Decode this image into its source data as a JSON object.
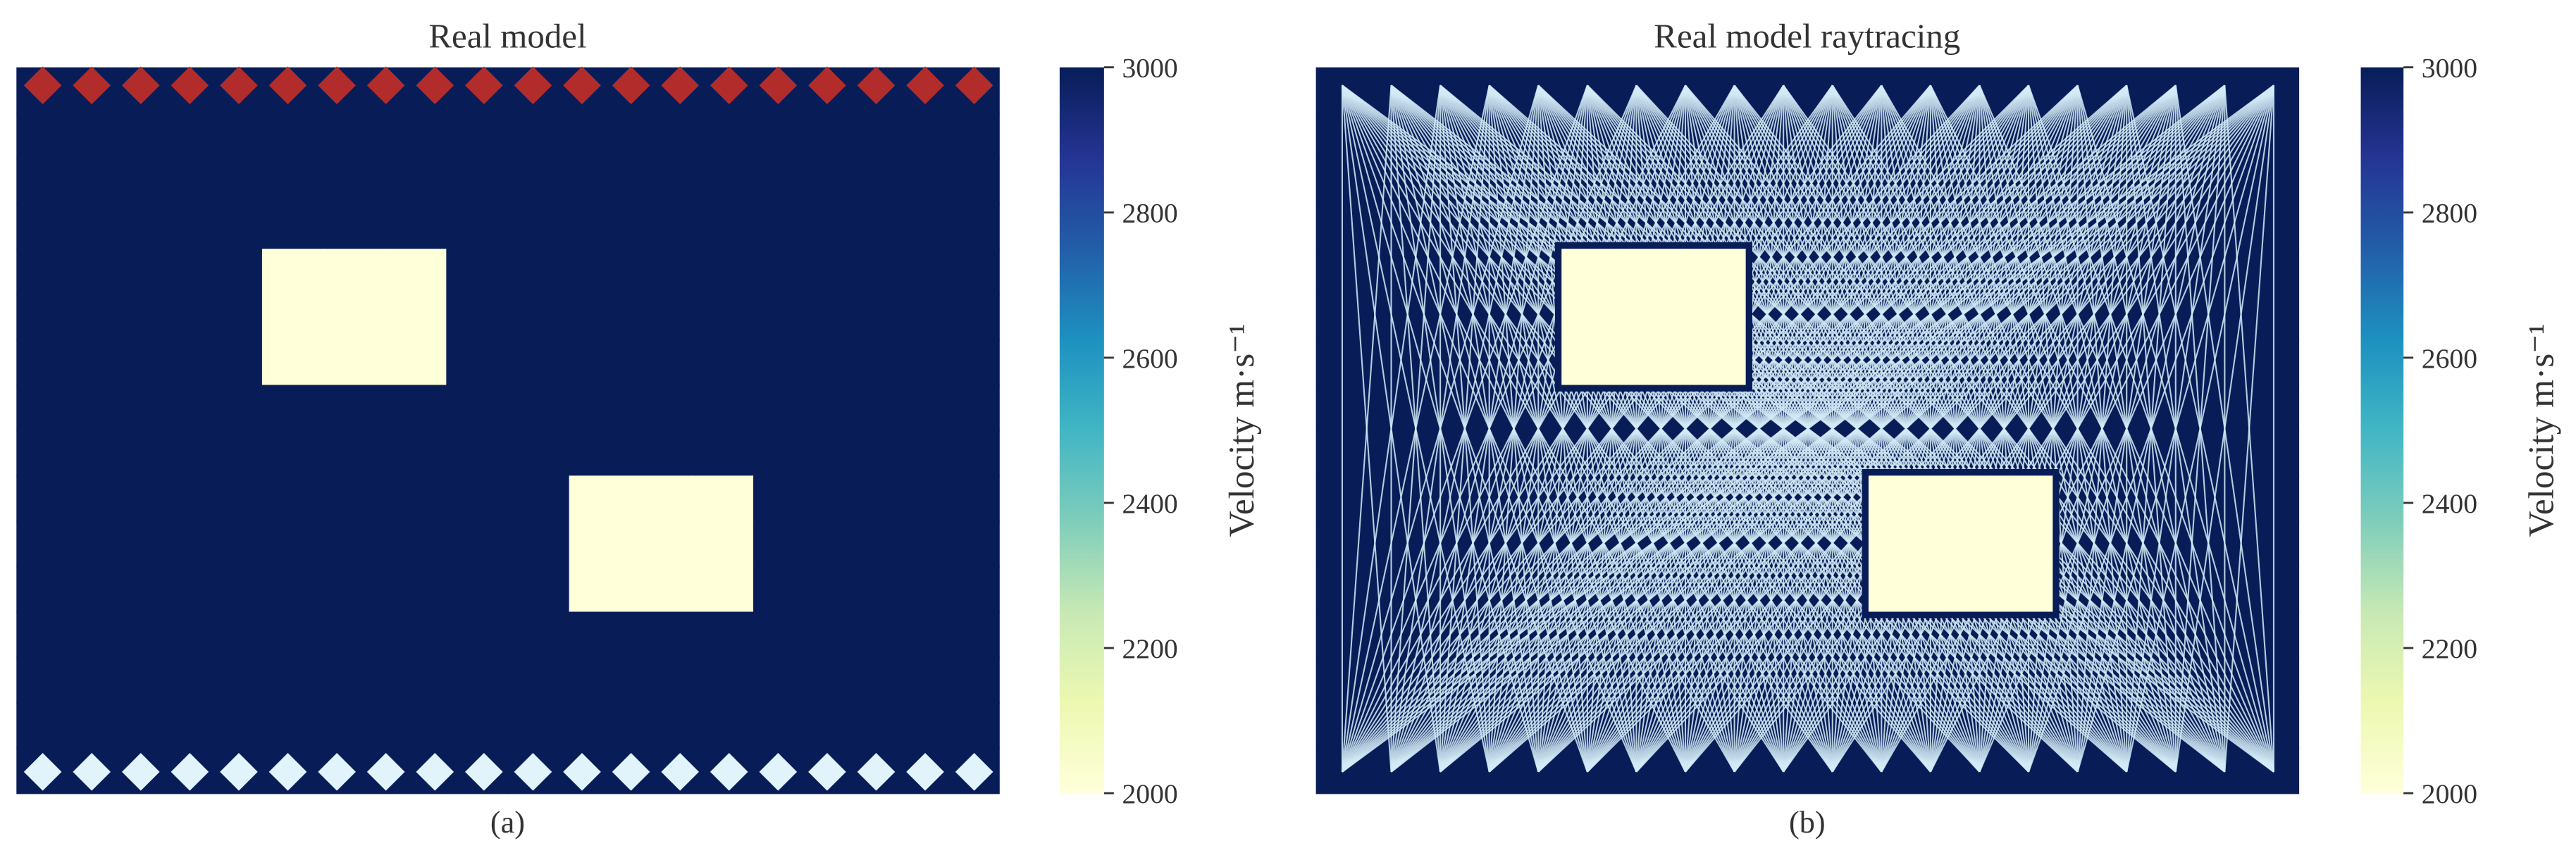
{
  "chart_data": [
    {
      "type": "heatmap",
      "title": "Real model",
      "caption": "(a)",
      "colorbar_label": "Velocity m·s⁻¹",
      "colormap": "YlGnBu",
      "clim": [
        2000,
        3000
      ],
      "cticks": [
        2000,
        2200,
        2400,
        2600,
        2800,
        3000
      ],
      "sources": true,
      "rays": false,
      "values": [
        [
          3000,
          3000,
          3000,
          3000,
          3000,
          3000,
          3000,
          3000,
          3000,
          3000,
          3000,
          3000,
          3000,
          3000,
          3000,
          3000
        ],
        [
          3000,
          3000,
          3000,
          3000,
          3000,
          3000,
          3000,
          3000,
          3000,
          3000,
          3000,
          3000,
          3000,
          3000,
          3000,
          3000
        ],
        [
          3000,
          3000,
          3000,
          3000,
          3000,
          3000,
          3000,
          3000,
          3000,
          3000,
          3000,
          3000,
          3000,
          3000,
          3000,
          3000
        ],
        [
          3000,
          3000,
          3000,
          3000,
          3000,
          3000,
          3000,
          3000,
          3000,
          3000,
          3000,
          3000,
          3000,
          3000,
          3000,
          3000
        ],
        [
          3000,
          3000,
          3000,
          3000,
          2000,
          2000,
          2000,
          3000,
          3000,
          3000,
          3000,
          3000,
          3000,
          3000,
          3000,
          3000
        ],
        [
          3000,
          3000,
          3000,
          3000,
          2000,
          2000,
          2000,
          3000,
          3000,
          3000,
          3000,
          3000,
          3000,
          3000,
          3000,
          3000
        ],
        [
          3000,
          3000,
          3000,
          3000,
          2000,
          2000,
          2000,
          3000,
          3000,
          3000,
          3000,
          3000,
          3000,
          3000,
          3000,
          3000
        ],
        [
          3000,
          3000,
          3000,
          3000,
          3000,
          3000,
          3000,
          3000,
          3000,
          3000,
          3000,
          3000,
          3000,
          3000,
          3000,
          3000
        ],
        [
          3000,
          3000,
          3000,
          3000,
          3000,
          3000,
          3000,
          3000,
          3000,
          3000,
          3000,
          3000,
          3000,
          3000,
          3000,
          3000
        ],
        [
          3000,
          3000,
          3000,
          3000,
          3000,
          3000,
          3000,
          3000,
          3000,
          2000,
          2000,
          2000,
          3000,
          3000,
          3000,
          3000
        ],
        [
          3000,
          3000,
          3000,
          3000,
          3000,
          3000,
          3000,
          3000,
          3000,
          2000,
          2000,
          2000,
          3000,
          3000,
          3000,
          3000
        ],
        [
          3000,
          3000,
          3000,
          3000,
          3000,
          3000,
          3000,
          3000,
          3000,
          2000,
          2000,
          2000,
          3000,
          3000,
          3000,
          3000
        ],
        [
          3000,
          3000,
          3000,
          3000,
          3000,
          3000,
          3000,
          3000,
          3000,
          3000,
          3000,
          3000,
          3000,
          3000,
          3000,
          3000
        ],
        [
          3000,
          3000,
          3000,
          3000,
          3000,
          3000,
          3000,
          3000,
          3000,
          3000,
          3000,
          3000,
          3000,
          3000,
          3000,
          3000
        ],
        [
          3000,
          3000,
          3000,
          3000,
          3000,
          3000,
          3000,
          3000,
          3000,
          3000,
          3000,
          3000,
          3000,
          3000,
          3000,
          3000
        ],
        [
          3000,
          3000,
          3000,
          3000,
          3000,
          3000,
          3000,
          3000,
          3000,
          3000,
          3000,
          3000,
          3000,
          3000,
          3000,
          3000
        ]
      ]
    },
    {
      "type": "heatmap",
      "title": "Real model raytracing",
      "caption": "(b)",
      "colorbar_label": "Velocity m·s⁻¹",
      "colormap": "YlGnBu",
      "clim": [
        2000,
        3000
      ],
      "cticks": [
        2000,
        2200,
        2400,
        2600,
        2800,
        3000
      ],
      "sources": false,
      "rays": true,
      "values": [
        [
          3000,
          3000,
          3000,
          3000,
          3000,
          3000,
          3000,
          3000,
          3000,
          3000,
          3000,
          3000,
          3000,
          3000,
          3000,
          3000
        ],
        [
          3000,
          3000,
          3000,
          3000,
          3000,
          3000,
          3000,
          3000,
          3000,
          3000,
          3000,
          3000,
          3000,
          3000,
          3000,
          3000
        ],
        [
          3000,
          3000,
          3000,
          3000,
          3000,
          3000,
          3000,
          3000,
          3000,
          3000,
          3000,
          3000,
          3000,
          3000,
          3000,
          3000
        ],
        [
          3000,
          3000,
          3000,
          3000,
          3000,
          3000,
          3000,
          3000,
          3000,
          3000,
          3000,
          3000,
          3000,
          3000,
          3000,
          3000
        ],
        [
          3000,
          3000,
          3000,
          3000,
          2000,
          2000,
          2000,
          3000,
          3000,
          3000,
          3000,
          3000,
          3000,
          3000,
          3000,
          3000
        ],
        [
          3000,
          3000,
          3000,
          3000,
          2000,
          2000,
          2000,
          3000,
          3000,
          3000,
          3000,
          3000,
          3000,
          3000,
          3000,
          3000
        ],
        [
          3000,
          3000,
          3000,
          3000,
          2000,
          2000,
          2000,
          3000,
          3000,
          3000,
          3000,
          3000,
          3000,
          3000,
          3000,
          3000
        ],
        [
          3000,
          3000,
          3000,
          3000,
          3000,
          3000,
          3000,
          3000,
          3000,
          3000,
          3000,
          3000,
          3000,
          3000,
          3000,
          3000
        ],
        [
          3000,
          3000,
          3000,
          3000,
          3000,
          3000,
          3000,
          3000,
          3000,
          3000,
          3000,
          3000,
          3000,
          3000,
          3000,
          3000
        ],
        [
          3000,
          3000,
          3000,
          3000,
          3000,
          3000,
          3000,
          3000,
          3000,
          2000,
          2000,
          2000,
          3000,
          3000,
          3000,
          3000
        ],
        [
          3000,
          3000,
          3000,
          3000,
          3000,
          3000,
          3000,
          3000,
          3000,
          2000,
          2000,
          2000,
          3000,
          3000,
          3000,
          3000
        ],
        [
          3000,
          3000,
          3000,
          3000,
          3000,
          3000,
          3000,
          3000,
          3000,
          2000,
          2000,
          2000,
          3000,
          3000,
          3000,
          3000
        ],
        [
          3000,
          3000,
          3000,
          3000,
          3000,
          3000,
          3000,
          3000,
          3000,
          3000,
          3000,
          3000,
          3000,
          3000,
          3000,
          3000
        ],
        [
          3000,
          3000,
          3000,
          3000,
          3000,
          3000,
          3000,
          3000,
          3000,
          3000,
          3000,
          3000,
          3000,
          3000,
          3000,
          3000
        ],
        [
          3000,
          3000,
          3000,
          3000,
          3000,
          3000,
          3000,
          3000,
          3000,
          3000,
          3000,
          3000,
          3000,
          3000,
          3000,
          3000
        ],
        [
          3000,
          3000,
          3000,
          3000,
          3000,
          3000,
          3000,
          3000,
          3000,
          3000,
          3000,
          3000,
          3000,
          3000,
          3000,
          3000
        ]
      ]
    }
  ]
}
